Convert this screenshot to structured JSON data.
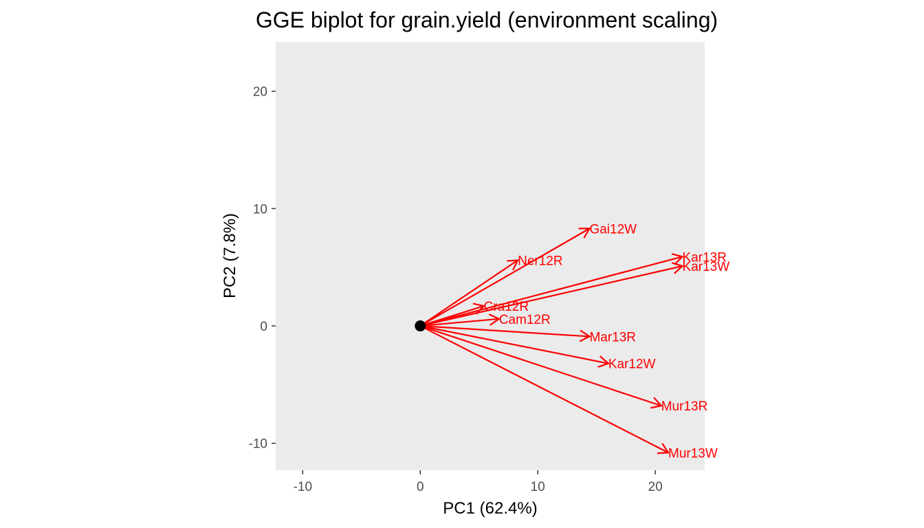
{
  "chart_data": {
    "type": "biplot",
    "title": "GGE biplot for grain.yield (environment scaling)",
    "xlabel": "PC1 (62.4%)",
    "ylabel": "PC2 (7.8%)",
    "xlim": [
      -12.3,
      24.2
    ],
    "ylim": [
      -12.3,
      24.2
    ],
    "xticks": [
      -10,
      0,
      10,
      20
    ],
    "yticks": [
      -10,
      0,
      10,
      20
    ],
    "xtick_labels": [
      "-10",
      "0",
      "10",
      "20"
    ],
    "ytick_labels": [
      "-10",
      "0",
      "10",
      "20"
    ],
    "panel_background": "#ebebeb",
    "grid": false,
    "arrow_color": "#ff0000",
    "origin": {
      "x": 0,
      "y": 0
    },
    "vectors": [
      {
        "label": "Gai12W",
        "x": 14.4,
        "y": 8.3
      },
      {
        "label": "Ner12R",
        "x": 8.3,
        "y": 5.6
      },
      {
        "label": "Kar13R",
        "x": 22.3,
        "y": 5.9
      },
      {
        "label": "Kar13W",
        "x": 22.3,
        "y": 5.1
      },
      {
        "label": "Cra12R",
        "x": 5.4,
        "y": 1.7
      },
      {
        "label": "Cam12R",
        "x": 6.7,
        "y": 0.6
      },
      {
        "label": "Mar13R",
        "x": 14.4,
        "y": -0.9
      },
      {
        "label": "Kar12W",
        "x": 16.0,
        "y": -3.2
      },
      {
        "label": "Mur13R",
        "x": 20.5,
        "y": -6.8
      },
      {
        "label": "Mur13W",
        "x": 21.1,
        "y": -10.8
      }
    ]
  }
}
